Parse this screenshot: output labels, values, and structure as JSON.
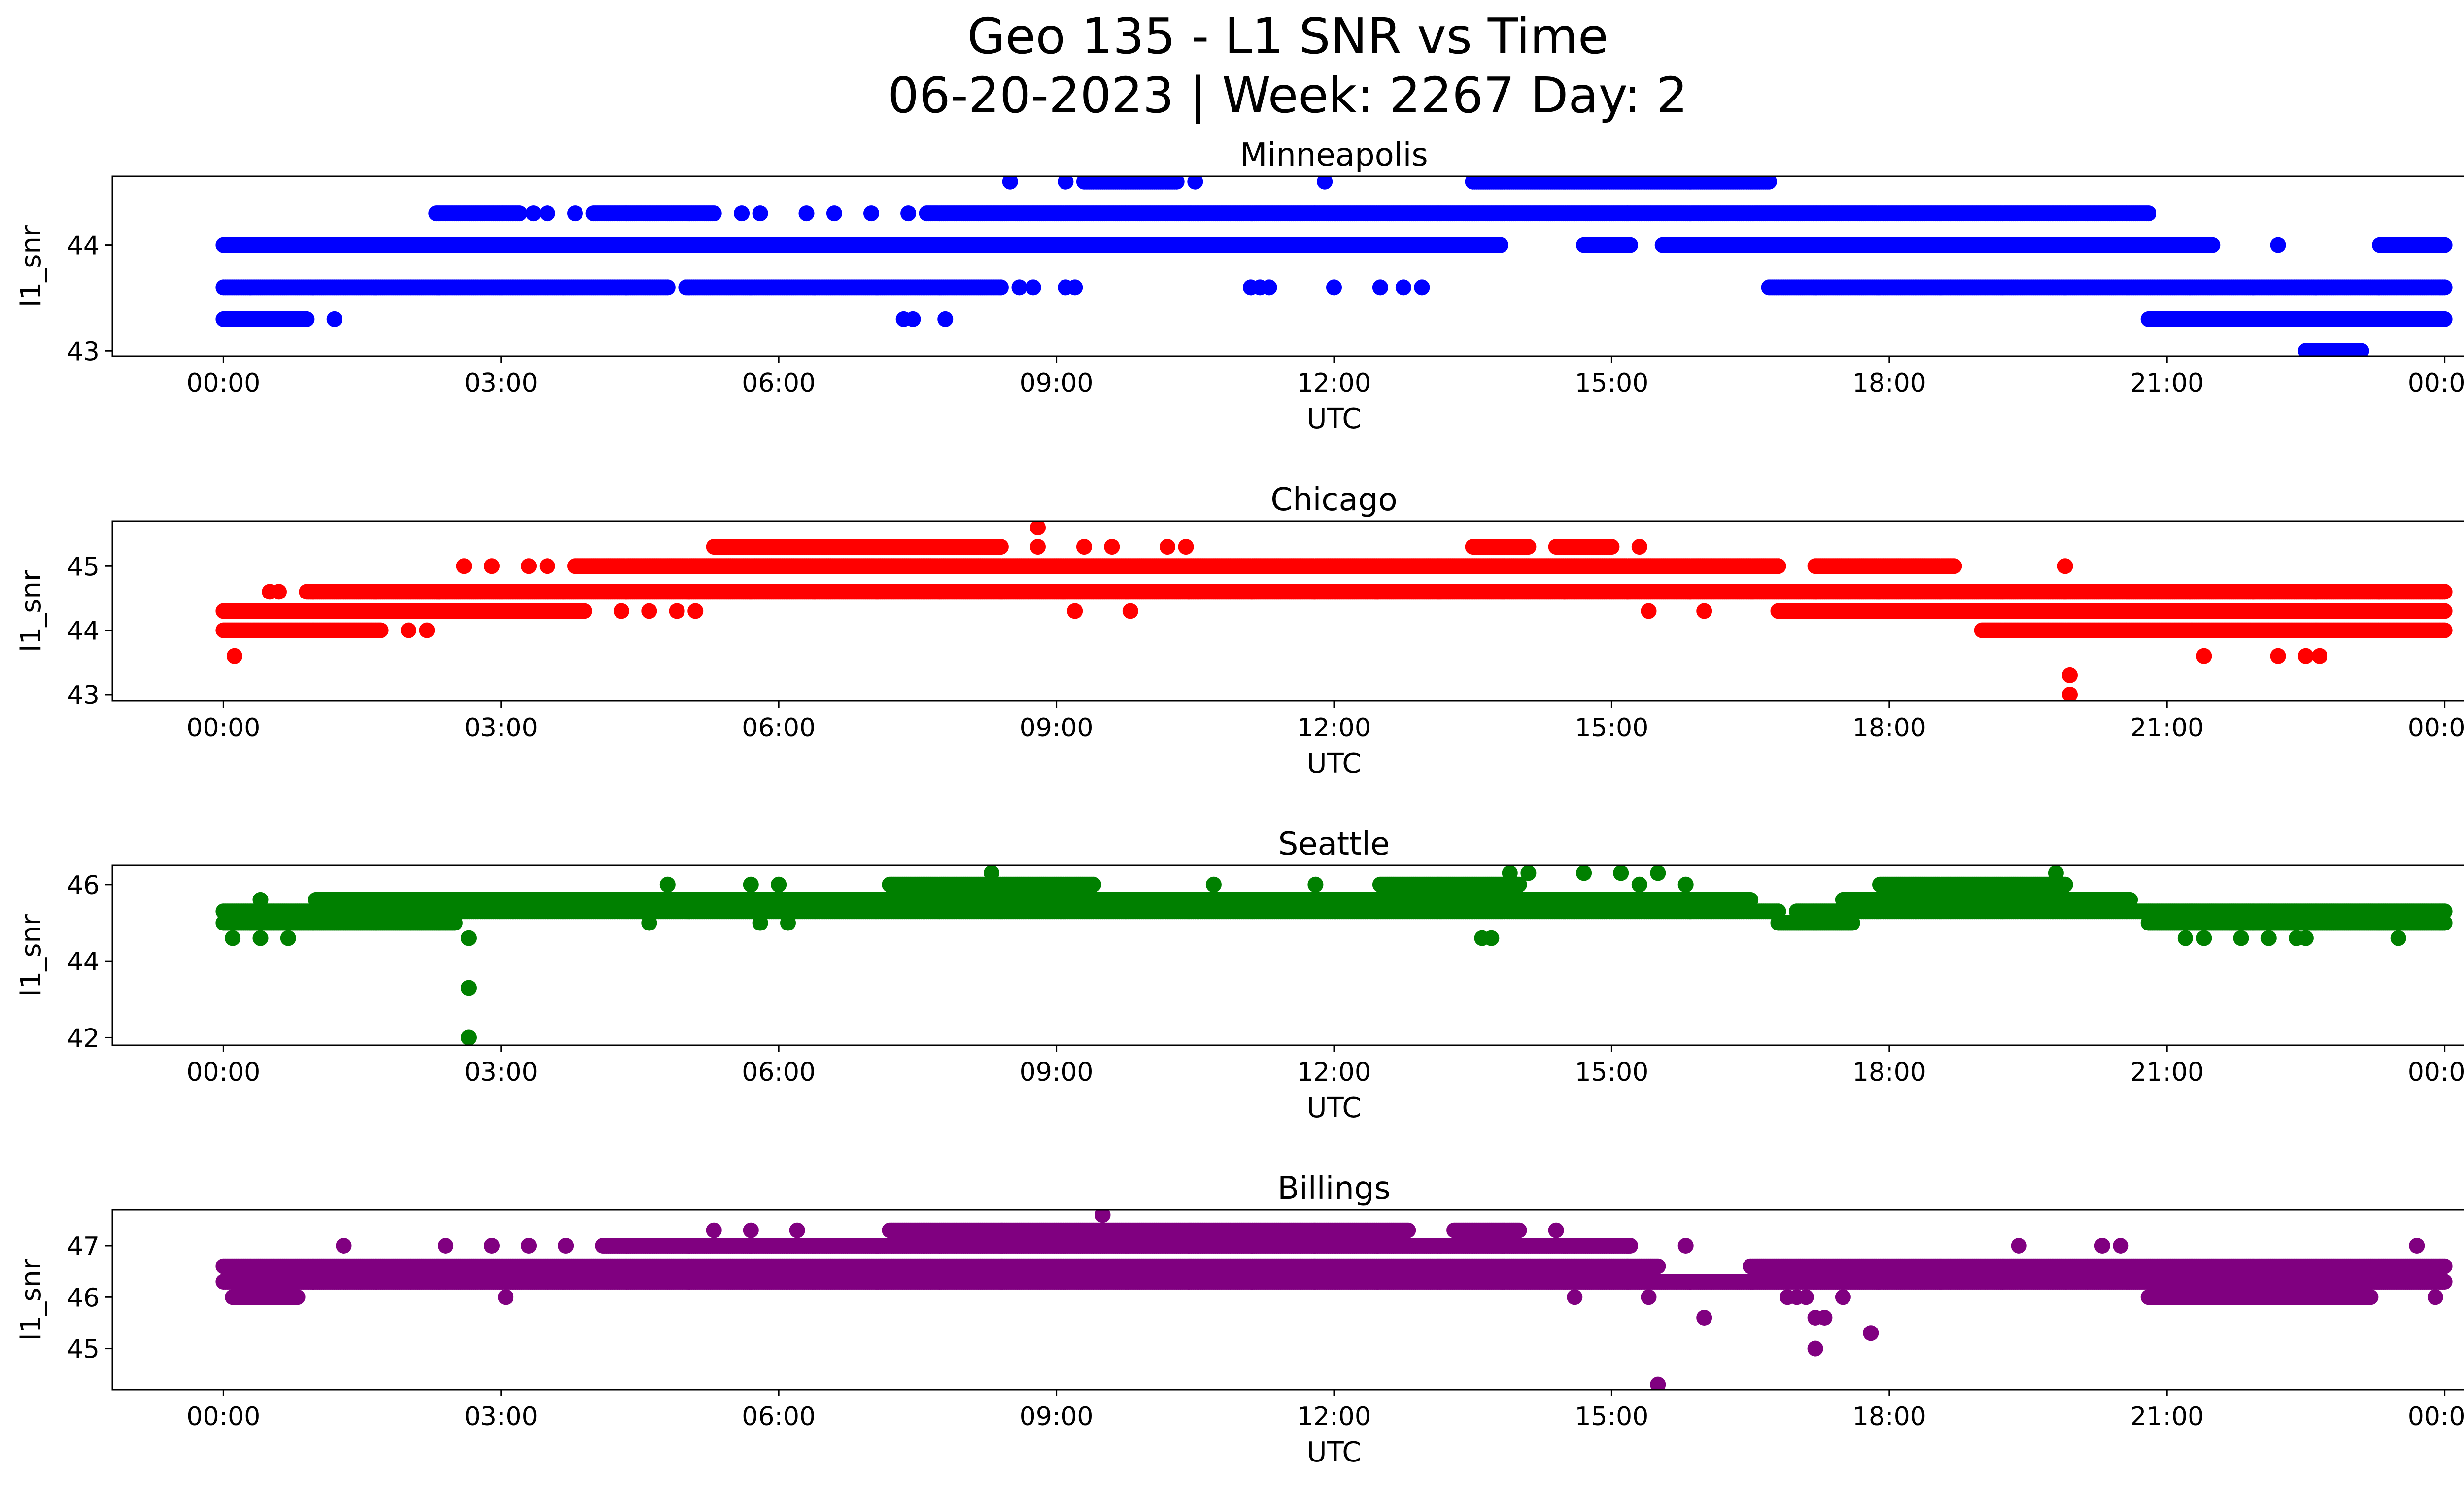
{
  "chart_data": {
    "type": "scatter",
    "title_line1": "Geo 135 - L1 SNR vs Time",
    "title_line2": "06-20-2023 | Week: 2267 Day: 2",
    "xlabel": "UTC",
    "ylabel": "l1_snr",
    "x_unit": "hours UTC",
    "x_ticks": [
      0,
      3,
      6,
      9,
      12,
      15,
      18,
      21,
      24
    ],
    "x_tick_labels": [
      "00:00",
      "03:00",
      "06:00",
      "09:00",
      "12:00",
      "15:00",
      "18:00",
      "21:00",
      "00:00"
    ],
    "xlim": [
      -1.2,
      25.2
    ],
    "grid": false,
    "legend": "none",
    "panels": [
      {
        "title": "Minneapolis",
        "color": "#0000ff",
        "ylim": [
          42.95,
          44.65
        ],
        "y_ticks": [
          43,
          44
        ],
        "levels": [
          {
            "y": 44.0,
            "segments": [
              [
                0,
                13.8
              ],
              [
                14.7,
                15.2
              ],
              [
                15.55,
                21.5
              ],
              [
                23.3,
                24
              ]
            ],
            "points": [
              22.2
            ]
          },
          {
            "y": 43.6,
            "segments": [
              [
                0,
                4.8
              ],
              [
                5.0,
                8.4
              ]
            ],
            "points": [
              8.6,
              8.75,
              9.1,
              9.2,
              11.1,
              11.2,
              11.3,
              12.0,
              12.5,
              12.75,
              12.95
            ],
            "segments2": [
              [
                16.7,
                24
              ]
            ]
          },
          {
            "y": 43.3,
            "segments": [
              [
                0,
                0.9
              ]
            ],
            "points": [
              1.2,
              7.35,
              7.45,
              7.8
            ],
            "segments2": [
              [
                20.8,
                24
              ]
            ]
          },
          {
            "y": 43.0,
            "segments": [
              [
                22.5,
                23.1
              ]
            ]
          },
          {
            "y": 44.3,
            "segments": [
              [
                2.3,
                3.2
              ],
              [
                4.0,
                5.3
              ],
              [
                7.6,
                20.8
              ]
            ],
            "points": [
              3.35,
              3.5,
              3.8,
              5.6,
              5.8,
              6.3,
              6.6,
              7.0,
              7.4
            ]
          },
          {
            "y": 44.6,
            "segments": [
              [
                9.3,
                10.3
              ],
              [
                13.5,
                16.7
              ]
            ],
            "points": [
              8.5,
              9.1,
              10.5,
              11.9
            ]
          }
        ]
      },
      {
        "title": "Chicago",
        "color": "#ff0000",
        "ylim": [
          42.9,
          45.7
        ],
        "y_ticks": [
          43,
          44,
          45
        ],
        "levels": [
          {
            "y": 44.3,
            "segments": [
              [
                0,
                3.9
              ],
              [
                16.8,
                24
              ]
            ],
            "points": [
              4.3,
              4.6,
              4.9,
              5.1,
              9.2,
              9.8,
              15.4,
              16.0
            ]
          },
          {
            "y": 44.0,
            "segments": [
              [
                0,
                1.7
              ],
              [
                19.0,
                24
              ]
            ],
            "points": [
              2.0,
              2.2
            ]
          },
          {
            "y": 44.6,
            "segments": [
              [
                0.9,
                24
              ]
            ],
            "points": [
              0.5,
              0.6
            ]
          },
          {
            "y": 45.0,
            "segments": [
              [
                3.8,
                16.8
              ],
              [
                17.2,
                18.7
              ]
            ],
            "points": [
              2.6,
              2.9,
              3.3,
              3.5,
              19.9
            ]
          },
          {
            "y": 45.3,
            "segments": [
              [
                5.3,
                8.4
              ],
              [
                13.5,
                14.1
              ],
              [
                14.4,
                15.0
              ]
            ],
            "points": [
              5.6,
              8.8,
              9.3,
              9.6,
              10.2,
              10.4,
              15.3
            ]
          },
          {
            "y": 45.6,
            "points": [
              8.8
            ]
          },
          {
            "y": 43.6,
            "points": [
              0.12,
              21.4,
              22.2,
              22.5,
              22.65
            ]
          },
          {
            "y": 43.3,
            "points": [
              19.95
            ]
          },
          {
            "y": 43.0,
            "points": [
              19.95
            ]
          }
        ]
      },
      {
        "title": "Seattle",
        "color": "#008000",
        "ylim": [
          41.8,
          46.5
        ],
        "y_ticks": [
          42,
          44,
          46
        ],
        "levels": [
          {
            "y": 45.0,
            "segments": [
              [
                0,
                2.5
              ],
              [
                16.8,
                17.6
              ],
              [
                20.8,
                24
              ]
            ],
            "points": [
              4.6,
              5.8,
              6.1
            ]
          },
          {
            "y": 45.3,
            "segments": [
              [
                0,
                16.8
              ],
              [
                17.0,
                24
              ]
            ]
          },
          {
            "y": 45.6,
            "segments": [
              [
                1.0,
                16.5
              ],
              [
                17.5,
                20.6
              ]
            ],
            "points": [
              0.4
            ]
          },
          {
            "y": 46.0,
            "segments": [
              [
                7.2,
                9.4
              ],
              [
                12.5,
                14.0
              ],
              [
                17.9,
                19.9
              ]
            ],
            "points": [
              4.8,
              5.7,
              6.0,
              10.7,
              11.8,
              15.3,
              15.8
            ]
          },
          {
            "y": 46.3,
            "points": [
              8.3,
              13.9,
              14.1,
              14.7,
              15.1,
              15.5,
              19.8
            ]
          },
          {
            "y": 44.6,
            "points": [
              0.1,
              0.4,
              0.7,
              2.65,
              13.6,
              13.7,
              21.2,
              21.4,
              21.8,
              22.1,
              22.4,
              22.5,
              23.5
            ]
          },
          {
            "y": 43.3,
            "points": [
              2.65
            ]
          },
          {
            "y": 42.0,
            "points": [
              2.65
            ]
          }
        ]
      },
      {
        "title": "Billings",
        "color": "#800080",
        "ylim": [
          44.2,
          47.7
        ],
        "y_ticks": [
          45,
          46,
          47
        ],
        "levels": [
          {
            "y": 46.3,
            "segments": [
              [
                0,
                24
              ]
            ]
          },
          {
            "y": 46.6,
            "segments": [
              [
                0,
                15.5
              ],
              [
                16.5,
                24
              ]
            ]
          },
          {
            "y": 46.0,
            "segments": [
              [
                0.1,
                0.8
              ],
              [
                20.8,
                23.2
              ]
            ],
            "points": [
              3.05,
              14.6,
              15.4,
              16.9,
              17.0,
              17.1,
              17.5,
              23.9
            ]
          },
          {
            "y": 47.0,
            "segments": [
              [
                4.1,
                15.2
              ]
            ],
            "points": [
              1.3,
              2.4,
              2.9,
              3.3,
              3.7,
              15.8,
              19.4,
              20.3,
              20.5,
              23.7
            ]
          },
          {
            "y": 47.3,
            "segments": [
              [
                7.2,
                12.8
              ],
              [
                13.3,
                14.0
              ]
            ],
            "points": [
              5.3,
              5.7,
              6.2,
              14.4
            ]
          },
          {
            "y": 47.6,
            "points": [
              9.5
            ]
          },
          {
            "y": 45.6,
            "points": [
              16.0,
              17.2,
              17.3
            ]
          },
          {
            "y": 45.3,
            "points": [
              17.8
            ]
          },
          {
            "y": 45.0,
            "points": [
              17.2
            ]
          },
          {
            "y": 44.3,
            "points": [
              15.5
            ]
          }
        ]
      }
    ]
  }
}
